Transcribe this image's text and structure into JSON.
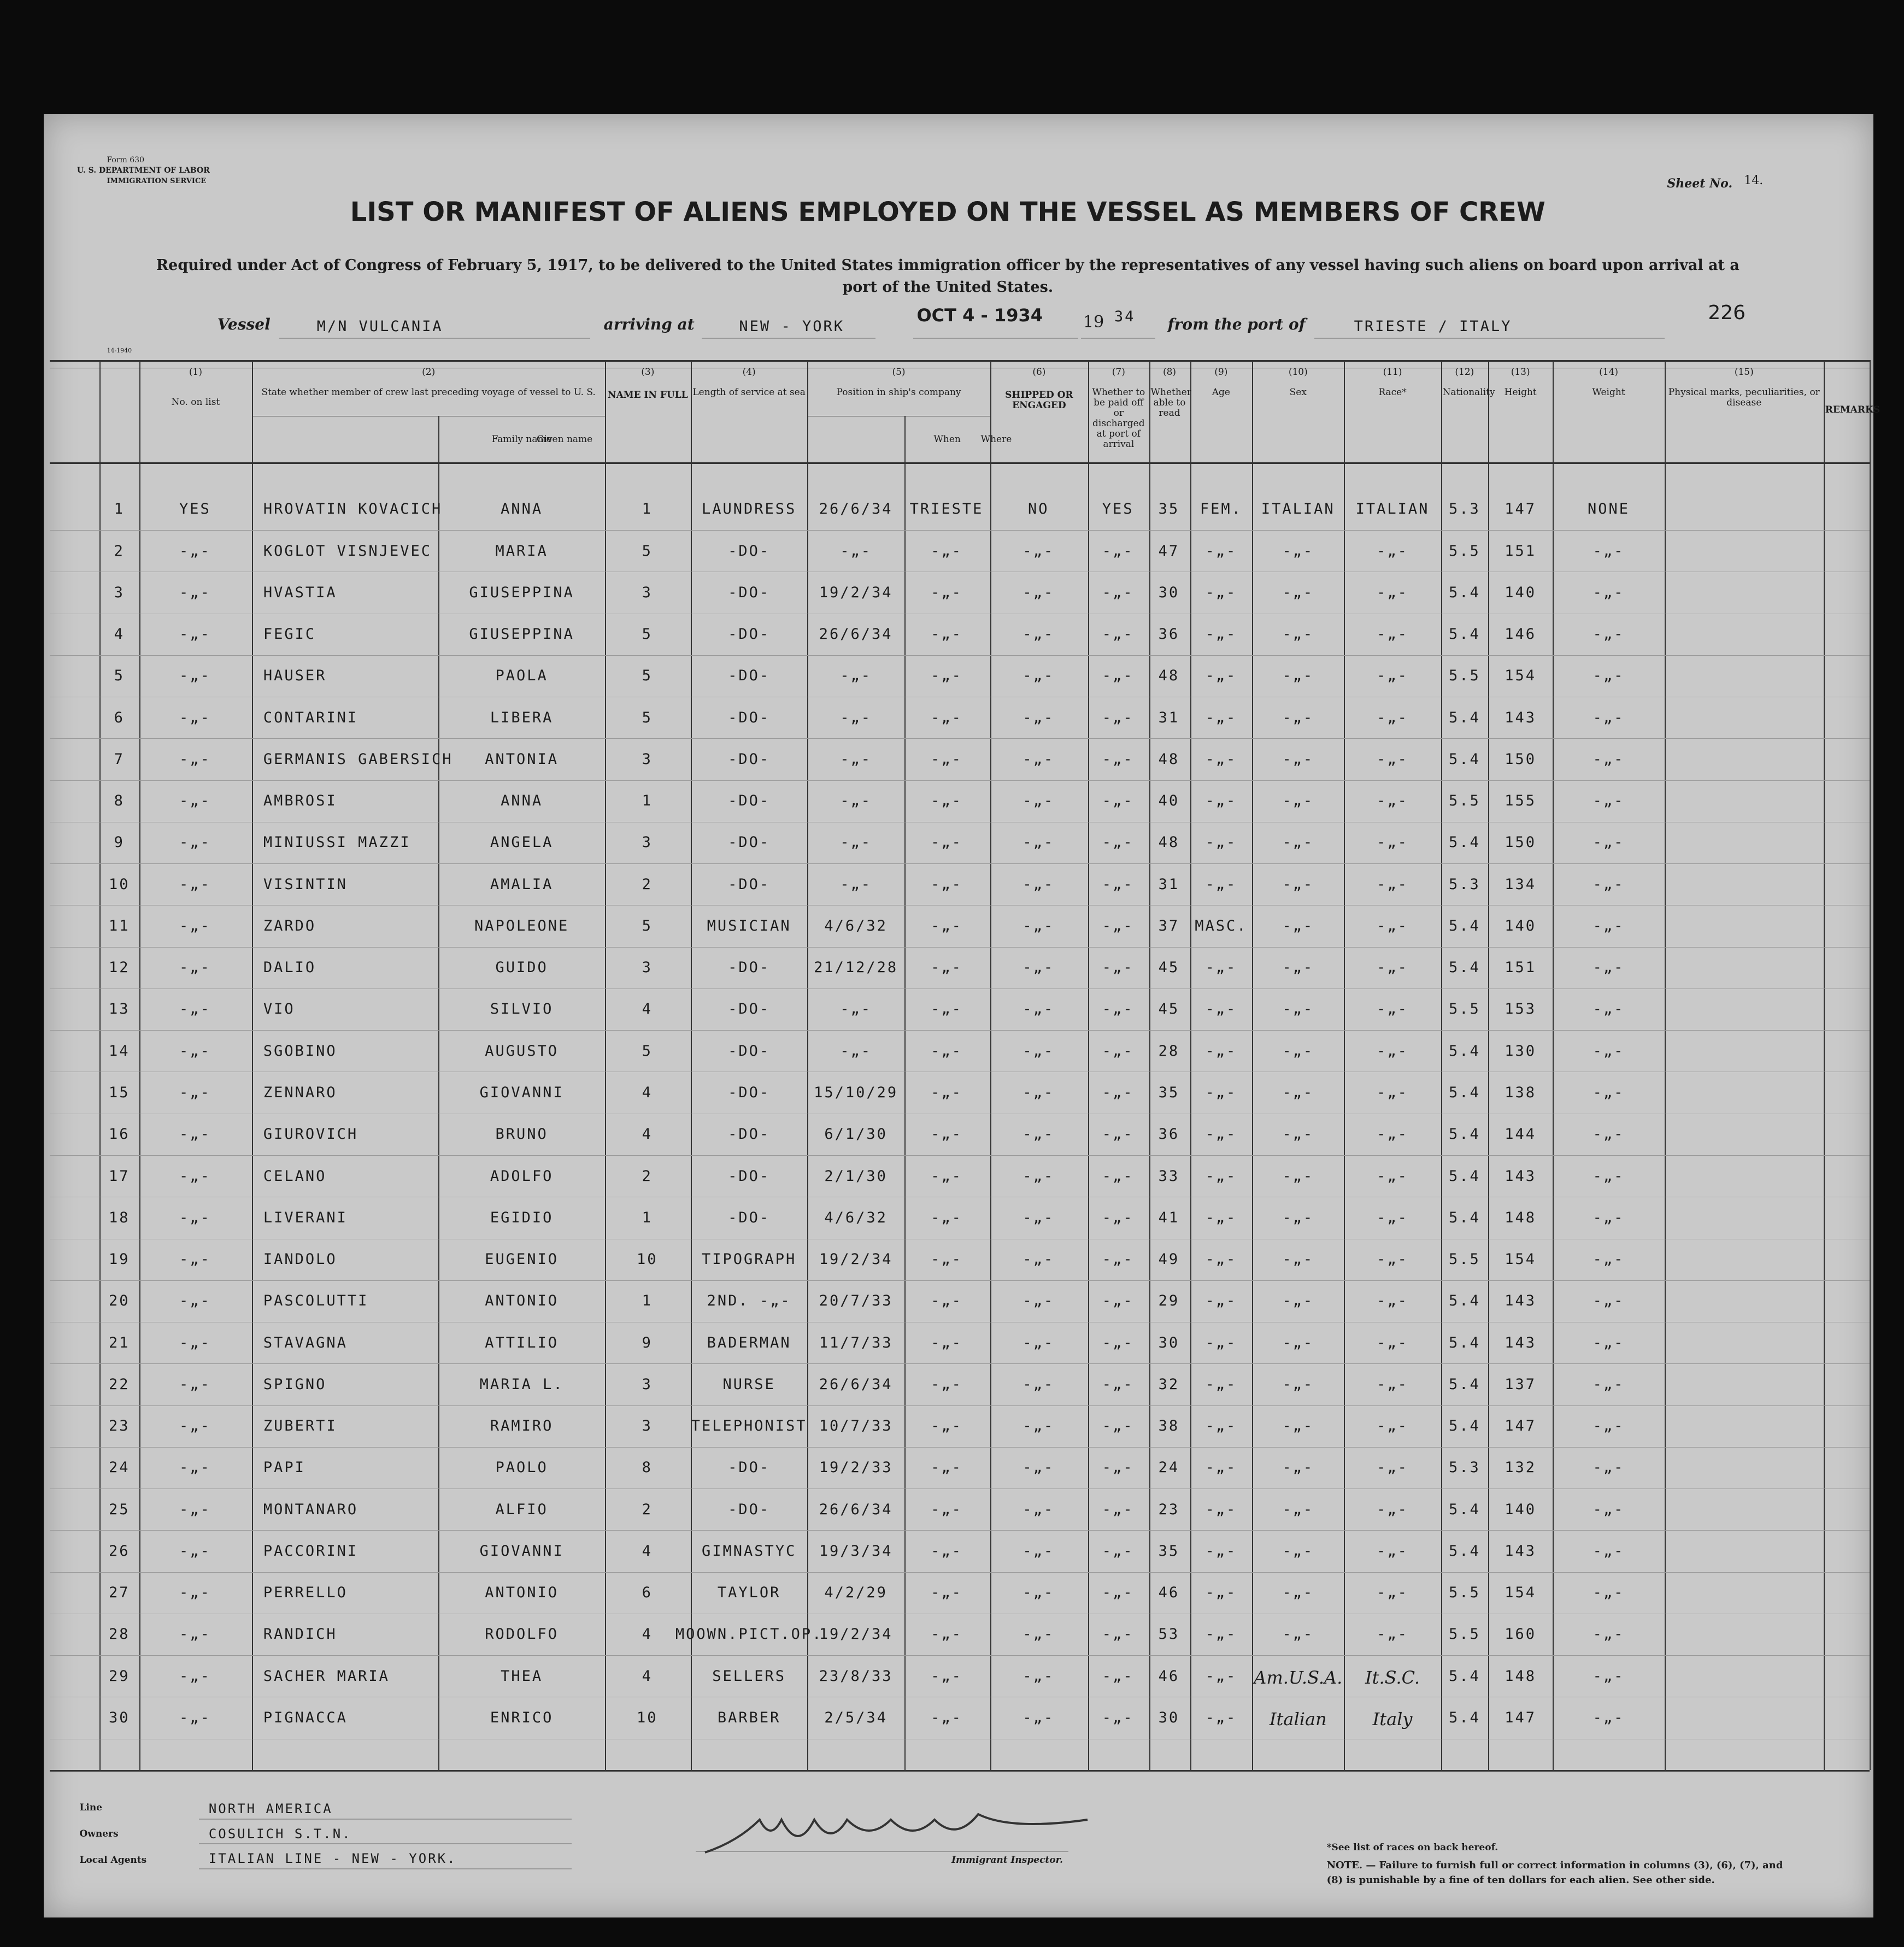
{
  "header": {
    "form": "Form 630",
    "department": "U. S. DEPARTMENT OF LABOR",
    "service": "IMMIGRATION SERVICE",
    "sheet_label": "Sheet No.",
    "sheet_no": "14.",
    "title": "LIST OR MANIFEST OF ALIENS EMPLOYED ON THE VESSEL AS MEMBERS OF CREW",
    "subtitle": "Required under Act of Congress of February 5, 1917, to be delivered to the United States immigration officer by the representatives of any vessel having such aliens on board upon arrival at a port of the United States.",
    "number": "226",
    "form_code": "14-1940"
  },
  "voyage": {
    "vessel_label": "Vessel",
    "vessel": "M/N VULCANIA",
    "arriving_label": "arriving at",
    "arriving": "NEW - YORK",
    "date_stamp": "OCT 4 - 1934",
    "year_prefix": "19",
    "year": "34",
    "from_label": "from the port of",
    "from": "TRIESTE / ITALY"
  },
  "table": {
    "columns": [
      {
        "num": "(1)",
        "label": "No. on list"
      },
      {
        "num": "(2)",
        "label": "State whether member of crew last preceding voyage of vessel to U. S."
      },
      {
        "num": "(3)",
        "label": "NAME IN FULL",
        "subs": [
          "Family name",
          "Given name"
        ]
      },
      {
        "num": "(4)",
        "label": "Length of service at sea"
      },
      {
        "num": "(5)",
        "label": "Position in ship's company"
      },
      {
        "num": "(6)",
        "label": "SHIPPED OR ENGAGED",
        "subs": [
          "When",
          "Where"
        ]
      },
      {
        "num": "(7)",
        "label": "Whether to be paid off or discharged at port of arrival"
      },
      {
        "num": "(8)",
        "label": "Whether able to read"
      },
      {
        "num": "(9)",
        "label": "Age"
      },
      {
        "num": "(10)",
        "label": "Sex"
      },
      {
        "num": "(11)",
        "label": "Race*"
      },
      {
        "num": "(12)",
        "label": "Nationality"
      },
      {
        "num": "(13)",
        "label": "Height"
      },
      {
        "num": "(14)",
        "label": "Weight"
      },
      {
        "num": "(15)",
        "label": "Physical marks, peculiarities, or disease"
      },
      {
        "label": "REMARKS"
      }
    ],
    "rows": [
      [
        "1",
        "YES",
        "HROVATIN KOVACICH",
        "ANNA",
        "1",
        "LAUNDRESS",
        "26/6/34",
        "TRIESTE",
        "NO",
        "YES",
        "35",
        "FEM.",
        "ITALIAN",
        "ITALIAN",
        "5.3",
        "147",
        "NONE"
      ],
      [
        "2",
        "-„-",
        "KOGLOT VISNJEVEC",
        "MARIA",
        "5",
        "-DO-",
        "-„-",
        "-„-",
        "-„-",
        "-„-",
        "47",
        "-„-",
        "-„-",
        "-„-",
        "5.5",
        "151",
        "-„-"
      ],
      [
        "3",
        "-„-",
        "HVASTIA",
        "GIUSEPPINA",
        "3",
        "-DO-",
        "19/2/34",
        "-„-",
        "-„-",
        "-„-",
        "30",
        "-„-",
        "-„-",
        "-„-",
        "5.4",
        "140",
        "-„-"
      ],
      [
        "4",
        "-„-",
        "FEGIC",
        "GIUSEPPINA",
        "5",
        "-DO-",
        "26/6/34",
        "-„-",
        "-„-",
        "-„-",
        "36",
        "-„-",
        "-„-",
        "-„-",
        "5.4",
        "146",
        "-„-"
      ],
      [
        "5",
        "-„-",
        "HAUSER",
        "PAOLA",
        "5",
        "-DO-",
        "-„-",
        "-„-",
        "-„-",
        "-„-",
        "48",
        "-„-",
        "-„-",
        "-„-",
        "5.5",
        "154",
        "-„-"
      ],
      [
        "6",
        "-„-",
        "CONTARINI",
        "LIBERA",
        "5",
        "-DO-",
        "-„-",
        "-„-",
        "-„-",
        "-„-",
        "31",
        "-„-",
        "-„-",
        "-„-",
        "5.4",
        "143",
        "-„-"
      ],
      [
        "7",
        "-„-",
        "GERMANIS GABERSICH",
        "ANTONIA",
        "3",
        "-DO-",
        "-„-",
        "-„-",
        "-„-",
        "-„-",
        "48",
        "-„-",
        "-„-",
        "-„-",
        "5.4",
        "150",
        "-„-"
      ],
      [
        "8",
        "-„-",
        "AMBROSI",
        "ANNA",
        "1",
        "-DO-",
        "-„-",
        "-„-",
        "-„-",
        "-„-",
        "40",
        "-„-",
        "-„-",
        "-„-",
        "5.5",
        "155",
        "-„-"
      ],
      [
        "9",
        "-„-",
        "MINIUSSI MAZZI",
        "ANGELA",
        "3",
        "-DO-",
        "-„-",
        "-„-",
        "-„-",
        "-„-",
        "48",
        "-„-",
        "-„-",
        "-„-",
        "5.4",
        "150",
        "-„-"
      ],
      [
        "10",
        "-„-",
        "VISINTIN",
        "AMALIA",
        "2",
        "-DO-",
        "-„-",
        "-„-",
        "-„-",
        "-„-",
        "31",
        "-„-",
        "-„-",
        "-„-",
        "5.3",
        "134",
        "-„-"
      ],
      [
        "11",
        "-„-",
        "ZARDO",
        "NAPOLEONE",
        "5",
        "MUSICIAN",
        "4/6/32",
        "-„-",
        "-„-",
        "-„-",
        "37",
        "MASC.",
        "-„-",
        "-„-",
        "5.4",
        "140",
        "-„-"
      ],
      [
        "12",
        "-„-",
        "DALIO",
        "GUIDO",
        "3",
        "-DO-",
        "21/12/28",
        "-„-",
        "-„-",
        "-„-",
        "45",
        "-„-",
        "-„-",
        "-„-",
        "5.4",
        "151",
        "-„-"
      ],
      [
        "13",
        "-„-",
        "VIO",
        "SILVIO",
        "4",
        "-DO-",
        "-„-",
        "-„-",
        "-„-",
        "-„-",
        "45",
        "-„-",
        "-„-",
        "-„-",
        "5.5",
        "153",
        "-„-"
      ],
      [
        "14",
        "-„-",
        "SGOBINO",
        "AUGUSTO",
        "5",
        "-DO-",
        "-„-",
        "-„-",
        "-„-",
        "-„-",
        "28",
        "-„-",
        "-„-",
        "-„-",
        "5.4",
        "130",
        "-„-"
      ],
      [
        "15",
        "-„-",
        "ZENNARO",
        "GIOVANNI",
        "4",
        "-DO-",
        "15/10/29",
        "-„-",
        "-„-",
        "-„-",
        "35",
        "-„-",
        "-„-",
        "-„-",
        "5.4",
        "138",
        "-„-"
      ],
      [
        "16",
        "-„-",
        "GIUROVICH",
        "BRUNO",
        "4",
        "-DO-",
        "6/1/30",
        "-„-",
        "-„-",
        "-„-",
        "36",
        "-„-",
        "-„-",
        "-„-",
        "5.4",
        "144",
        "-„-"
      ],
      [
        "17",
        "-„-",
        "CELANO",
        "ADOLFO",
        "2",
        "-DO-",
        "2/1/30",
        "-„-",
        "-„-",
        "-„-",
        "33",
        "-„-",
        "-„-",
        "-„-",
        "5.4",
        "143",
        "-„-"
      ],
      [
        "18",
        "-„-",
        "LIVERANI",
        "EGIDIO",
        "1",
        "-DO-",
        "4/6/32",
        "-„-",
        "-„-",
        "-„-",
        "41",
        "-„-",
        "-„-",
        "-„-",
        "5.4",
        "148",
        "-„-"
      ],
      [
        "19",
        "-„-",
        "IANDOLO",
        "EUGENIO",
        "10",
        "TIPOGRAPH",
        "19/2/34",
        "-„-",
        "-„-",
        "-„-",
        "49",
        "-„-",
        "-„-",
        "-„-",
        "5.5",
        "154",
        "-„-"
      ],
      [
        "20",
        "-„-",
        "PASCOLUTTI",
        "ANTONIO",
        "1",
        "2ND. -„-",
        "20/7/33",
        "-„-",
        "-„-",
        "-„-",
        "29",
        "-„-",
        "-„-",
        "-„-",
        "5.4",
        "143",
        "-„-"
      ],
      [
        "21",
        "-„-",
        "STAVAGNA",
        "ATTILIO",
        "9",
        "BADERMAN",
        "11/7/33",
        "-„-",
        "-„-",
        "-„-",
        "30",
        "-„-",
        "-„-",
        "-„-",
        "5.4",
        "143",
        "-„-"
      ],
      [
        "22",
        "-„-",
        "SPIGNO",
        "MARIA L.",
        "3",
        "NURSE",
        "26/6/34",
        "-„-",
        "-„-",
        "-„-",
        "32",
        "-„-",
        "-„-",
        "-„-",
        "5.4",
        "137",
        "-„-"
      ],
      [
        "23",
        "-„-",
        "ZUBERTI",
        "RAMIRO",
        "3",
        "TELEPHONIST",
        "10/7/33",
        "-„-",
        "-„-",
        "-„-",
        "38",
        "-„-",
        "-„-",
        "-„-",
        "5.4",
        "147",
        "-„-"
      ],
      [
        "24",
        "-„-",
        "PAPI",
        "PAOLO",
        "8",
        "-DO-",
        "19/2/33",
        "-„-",
        "-„-",
        "-„-",
        "24",
        "-„-",
        "-„-",
        "-„-",
        "5.3",
        "132",
        "-„-"
      ],
      [
        "25",
        "-„-",
        "MONTANARO",
        "ALFIO",
        "2",
        "-DO-",
        "26/6/34",
        "-„-",
        "-„-",
        "-„-",
        "23",
        "-„-",
        "-„-",
        "-„-",
        "5.4",
        "140",
        "-„-"
      ],
      [
        "26",
        "-„-",
        "PACCORINI",
        "GIOVANNI",
        "4",
        "GIMNASTYC",
        "19/3/34",
        "-„-",
        "-„-",
        "-„-",
        "35",
        "-„-",
        "-„-",
        "-„-",
        "5.4",
        "143",
        "-„-"
      ],
      [
        "27",
        "-„-",
        "PERRELLO",
        "ANTONIO",
        "6",
        "TAYLOR",
        "4/2/29",
        "-„-",
        "-„-",
        "-„-",
        "46",
        "-„-",
        "-„-",
        "-„-",
        "5.5",
        "154",
        "-„-"
      ],
      [
        "28",
        "-„-",
        "RANDICH",
        "RODOLFO",
        "4",
        "MOOWN.PICT.OP.",
        "19/2/34",
        "-„-",
        "-„-",
        "-„-",
        "53",
        "-„-",
        "-„-",
        "-„-",
        "5.5",
        "160",
        "-„-"
      ],
      [
        "29",
        "-„-",
        "SACHER MARIA",
        "THEA",
        "4",
        "SELLERS",
        "23/8/33",
        "-„-",
        "-„-",
        "-„-",
        "46",
        "-„-",
        "Am.U.S.A.",
        "It.S.C.",
        "5.4",
        "148",
        "-„-"
      ],
      [
        "30",
        "-„-",
        "PIGNACCA",
        "ENRICO",
        "10",
        "BARBER",
        "2/5/34",
        "-„-",
        "-„-",
        "-„-",
        "30",
        "-„-",
        "Italian",
        "Italy",
        "5.4",
        "147",
        "-„-"
      ]
    ]
  },
  "footer": {
    "line_label": "Line",
    "line": "NORTH AMERICA",
    "owners_label": "Owners",
    "owners": "COSULICH S.T.N.",
    "agents_label": "Local Agents",
    "agents": "ITALIAN LINE - NEW - YORK.",
    "inspector_label": "Immigrant Inspector.",
    "races_note": "*See list of races on back hereof.",
    "note": "NOTE. — Failure to furnish full or correct information in columns (3), (6), (7), and (8) is punishable by a fine of ten dollars for each alien. See other side."
  }
}
